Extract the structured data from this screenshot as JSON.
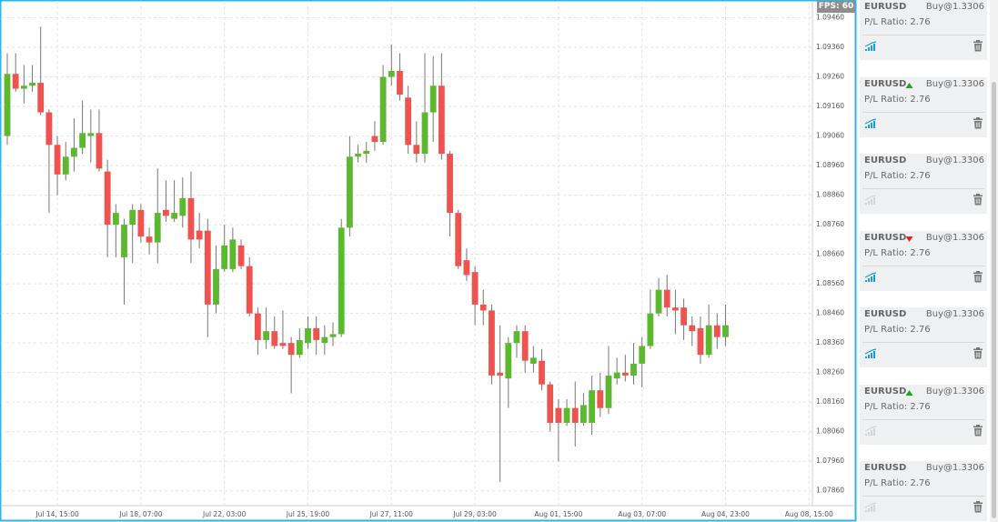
{
  "chart_data": {
    "type": "candlestick",
    "categories": [
      null,
      null,
      null,
      null,
      null,
      null,
      "Jul 14, 15:00",
      null,
      null,
      null,
      null,
      null,
      null,
      null,
      null,
      null,
      "Jul 18, 07:00",
      null,
      null,
      null,
      null,
      null,
      null,
      null,
      null,
      null,
      "Jul 22, 03:00",
      null,
      null,
      null,
      null,
      null,
      null,
      null,
      null,
      null,
      "Jul 25, 19:00",
      null,
      null,
      null,
      null,
      null,
      null,
      null,
      null,
      null,
      "Jul 27, 11:00",
      null,
      null,
      null,
      null,
      null,
      null,
      null,
      null,
      null,
      "Jul 29, 03:00",
      null,
      null,
      null,
      null,
      null,
      null,
      null,
      null,
      null,
      "Aug 01, 15:00",
      null,
      null,
      null,
      null,
      null,
      null,
      null,
      null,
      null,
      "Aug 03, 07:00",
      null,
      null,
      null,
      null,
      null,
      null,
      null,
      null,
      null,
      "Aug 04, 23:00",
      null,
      null,
      null,
      null,
      null,
      null,
      null,
      null,
      null,
      "Aug 08, 15:00"
    ],
    "open": [
      1.0906,
      1.0927,
      1.0922,
      1.0923,
      1.0924,
      1.0914,
      1.0903,
      1.0893,
      1.0899,
      1.0902,
      1.0906,
      1.0907,
      1.0894,
      1.0876,
      1.0865,
      1.0876,
      1.0881,
      1.0872,
      1.087,
      1.0881,
      1.0878,
      1.0879,
      1.0885,
      1.0874,
      1.0874,
      1.0849,
      1.0861,
      1.0861,
      1.0869,
      1.0862,
      1.0846,
      1.0837,
      1.084,
      1.0836,
      1.0836,
      1.0832,
      1.0836,
      1.0841,
      1.0836,
      1.0838,
      1.0839,
      1.0875,
      1.0899,
      1.09,
      1.0906,
      1.0904,
      1.0926,
      1.0928,
      1.0919,
      1.0903,
      1.09,
      1.0914,
      1.0923,
      1.09,
      1.088,
      1.0864,
      1.086,
      1.0849,
      1.0847,
      1.0826,
      1.0824,
      1.0836,
      1.084,
      1.0829,
      1.083,
      1.0822,
      1.0814,
      1.0809,
      1.0814,
      1.0809,
      1.0809,
      1.082,
      1.0814,
      1.0824,
      1.0826,
      1.0825,
      1.0829,
      1.0835,
      1.0846,
      1.0854,
      1.0848,
      1.0848,
      1.0842,
      1.0841,
      1.0832,
      1.0842,
      1.0838,
      null,
      null,
      null,
      null,
      null,
      null,
      null,
      null,
      null,
      null
    ],
    "high": [
      1.0934,
      1.0934,
      1.093,
      1.093,
      1.0943,
      1.0915,
      1.0906,
      1.0904,
      1.0912,
      1.0918,
      1.0915,
      1.0915,
      1.0898,
      1.0883,
      1.0878,
      1.0883,
      1.0883,
      1.0875,
      1.0895,
      1.0891,
      1.0891,
      1.0892,
      1.0894,
      1.088,
      1.0878,
      1.0869,
      1.0876,
      1.0875,
      1.0871,
      1.0865,
      1.0848,
      1.0848,
      1.0845,
      1.0847,
      1.0838,
      1.0841,
      1.0845,
      1.0845,
      1.0842,
      1.0843,
      1.0878,
      1.0906,
      1.0903,
      1.0904,
      1.0911,
      1.093,
      1.0937,
      1.0934,
      1.0923,
      1.0911,
      1.0934,
      1.0933,
      1.0934,
      1.0901,
      1.0881,
      1.0868,
      1.0862,
      1.0854,
      1.0849,
      1.0842,
      1.0838,
      1.0842,
      1.0842,
      1.0835,
      1.0834,
      1.0823,
      1.0817,
      1.0817,
      1.0823,
      1.0819,
      1.0825,
      1.0826,
      1.0835,
      1.0831,
      1.0832,
      1.0836,
      1.0838,
      1.0854,
      1.0858,
      1.0859,
      1.0854,
      1.0851,
      1.0845,
      1.0845,
      1.0849,
      1.0846,
      1.0849,
      null,
      null,
      null,
      null,
      null,
      null,
      null,
      null,
      null,
      null
    ],
    "low": [
      1.0903,
      1.0921,
      1.0917,
      1.0921,
      1.0913,
      1.088,
      1.0886,
      1.0891,
      1.0894,
      1.09,
      1.0897,
      1.0894,
      1.0865,
      1.0865,
      1.0849,
      1.0863,
      1.087,
      1.0866,
      1.0863,
      1.0877,
      1.0877,
      1.0875,
      1.0863,
      1.0868,
      1.0838,
      1.0846,
      1.086,
      1.086,
      1.0861,
      1.0845,
      1.0832,
      1.0834,
      1.0834,
      1.0834,
      1.0819,
      1.0831,
      1.0834,
      1.0832,
      1.0832,
      1.0835,
      1.0838,
      1.0872,
      1.0897,
      1.0897,
      1.0901,
      1.0903,
      1.0923,
      1.0918,
      1.09,
      1.0897,
      1.0897,
      1.0904,
      1.0898,
      1.0872,
      1.0861,
      1.0857,
      1.0842,
      1.0842,
      1.0822,
      1.0789,
      1.0814,
      1.0831,
      1.0826,
      1.0826,
      1.082,
      1.0806,
      1.0796,
      1.0808,
      1.0801,
      1.0808,
      1.0805,
      1.0811,
      1.0812,
      1.0822,
      1.0823,
      1.0822,
      1.0821,
      1.0834,
      1.0845,
      1.0845,
      1.0839,
      1.0837,
      1.0835,
      1.0829,
      1.0831,
      1.0834,
      1.0835,
      null,
      null,
      null,
      null,
      null,
      null,
      null,
      null,
      null,
      null
    ],
    "close": [
      1.0927,
      1.0922,
      1.0923,
      1.0924,
      1.0914,
      1.0903,
      1.0893,
      1.0899,
      1.0902,
      1.0907,
      1.0907,
      1.0895,
      1.0876,
      1.088,
      1.0876,
      1.0881,
      1.0872,
      1.087,
      1.088,
      1.0879,
      1.088,
      1.0885,
      1.0871,
      1.0871,
      1.0849,
      1.0861,
      1.0869,
      1.0871,
      1.0862,
      1.0846,
      1.0837,
      1.084,
      1.0835,
      1.0835,
      1.0832,
      1.0837,
      1.0841,
      1.0837,
      1.0838,
      1.0839,
      1.0875,
      1.0899,
      1.09,
      1.0901,
      1.0904,
      1.0926,
      1.0928,
      1.092,
      1.0903,
      1.09,
      1.0914,
      1.0923,
      1.09,
      1.088,
      1.0862,
      1.0859,
      1.0849,
      1.0847,
      1.0825,
      1.0825,
      1.0836,
      1.084,
      1.083,
      1.0831,
      1.0822,
      1.0809,
      1.0809,
      1.0814,
      1.0809,
      1.0815,
      1.082,
      1.0814,
      1.0825,
      1.0826,
      1.0825,
      1.0829,
      1.0835,
      1.0846,
      1.0854,
      1.0848,
      1.0847,
      1.0842,
      1.084,
      1.0832,
      1.0842,
      1.0838,
      1.0842,
      null,
      null,
      null,
      null,
      null,
      null,
      null,
      null,
      null,
      null
    ],
    "up_color": "#5cb82e",
    "down_color": "#ef5350",
    "ylim": [
      1.0781,
      1.0952
    ],
    "yticks": [
      {
        "value": 1.0786,
        "label": "1.07860"
      },
      {
        "value": 1.0796,
        "label": "1.07960"
      },
      {
        "value": 1.0806,
        "label": "1.08060"
      },
      {
        "value": 1.0816,
        "label": "1.08160"
      },
      {
        "value": 1.0826,
        "label": "1.08260"
      },
      {
        "value": 1.0836,
        "label": "1.08360"
      },
      {
        "value": 1.0846,
        "label": "1.08460"
      },
      {
        "value": 1.0856,
        "label": "1.08560"
      },
      {
        "value": 1.0866,
        "label": "1.08660"
      },
      {
        "value": 1.0876,
        "label": "1.08760"
      },
      {
        "value": 1.0886,
        "label": "1.08860"
      },
      {
        "value": 1.0896,
        "label": "1.08960"
      },
      {
        "value": 1.0906,
        "label": "1.09060"
      },
      {
        "value": 1.0916,
        "label": "1.09160"
      },
      {
        "value": 1.0926,
        "label": "1.09260"
      },
      {
        "value": 1.0936,
        "label": "1.09360"
      },
      {
        "value": 1.0946,
        "label": "1.09460"
      }
    ],
    "grid": true
  },
  "overlay": {
    "fps": "FPS: 60"
  },
  "panel": {
    "items": [
      {
        "symbol": "EURUSD",
        "order": "Buy@1.3306",
        "ratio": "P/L Ratio: 2.76",
        "trend": null,
        "active": true
      },
      {
        "symbol": "EURUSD",
        "order": "Buy@1.3306",
        "ratio": "P/L Ratio: 2.76",
        "trend": "up",
        "active": true
      },
      {
        "symbol": "EURUSD",
        "order": "Buy@1.3306",
        "ratio": "P/L Ratio: 2.76",
        "trend": null,
        "active": false
      },
      {
        "symbol": "EURUSD",
        "order": "Buy@1.3306",
        "ratio": "P/L Ratio: 2.76",
        "trend": "down",
        "active": true
      },
      {
        "symbol": "EURUSD",
        "order": "Buy@1.3306",
        "ratio": "P/L Ratio: 2.76",
        "trend": null,
        "active": true
      },
      {
        "symbol": "EURUSD",
        "order": "Buy@1.3306",
        "ratio": "P/L Ratio: 2.76",
        "trend": "up",
        "active": false
      },
      {
        "symbol": "EURUSD",
        "order": "Buy@1.3306",
        "ratio": "P/L Ratio: 2.76",
        "trend": null,
        "active": false
      }
    ]
  }
}
